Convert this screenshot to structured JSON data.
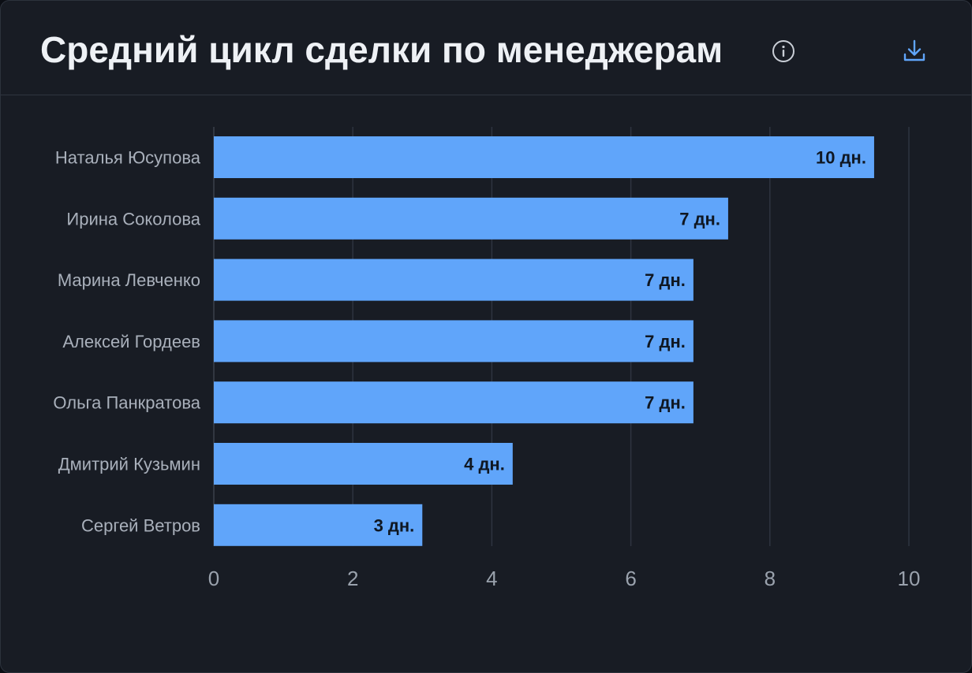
{
  "title": "Средний цикл сделки по менеджерам",
  "icons": {
    "info": "info-circle-icon",
    "download": "download-icon"
  },
  "colors": {
    "background": "#181c24",
    "bar": "#60a5fa",
    "grid": "#2e3440",
    "title": "#eef1f5",
    "accent_icon": "#60a5fa"
  },
  "chart_data": {
    "type": "bar",
    "orientation": "horizontal",
    "categories": [
      "Наталья Юсупова",
      "Ирина Соколова",
      "Марина Левченко",
      "Алексей Гордеев",
      "Ольга Панкратова",
      "Дмитрий Кузьмин",
      "Сергей Ветров"
    ],
    "values": [
      9.5,
      7.4,
      6.9,
      6.9,
      6.9,
      4.3,
      3.0
    ],
    "data_labels": [
      "10 дн.",
      "7 дн.",
      "7 дн.",
      "7 дн.",
      "7 дн.",
      "4 дн.",
      "3 дн."
    ],
    "xlim": [
      0,
      10
    ],
    "xticks": [
      0,
      2,
      4,
      6,
      8,
      10
    ],
    "xlabel": "",
    "ylabel": "",
    "grid": true,
    "legend": "none"
  }
}
